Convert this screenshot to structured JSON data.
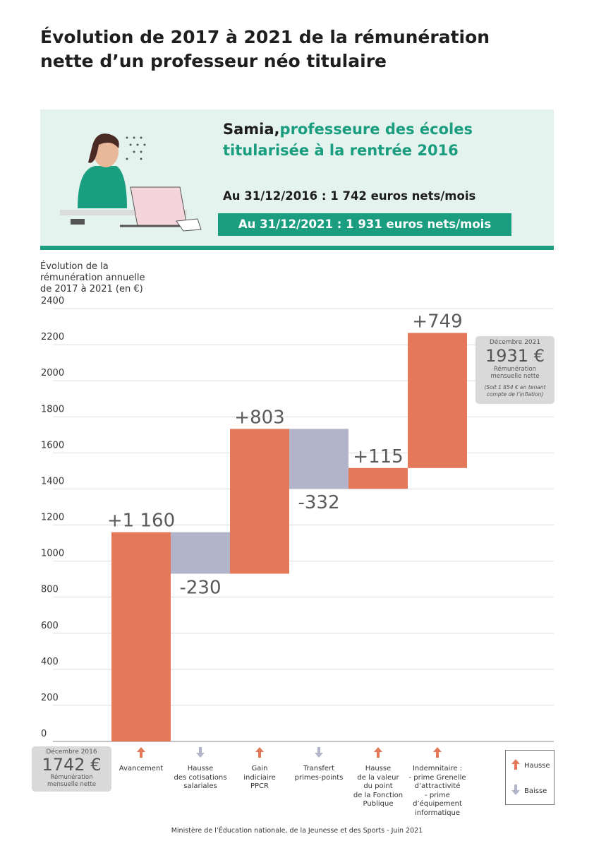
{
  "header": {
    "title": "Évolution de 2017 à 2021 de la rémunération\nnette d’un professeur néo titulaire"
  },
  "profile": {
    "name": "Samia,",
    "role": "professeure des écoles\ntitularisée à la rentrée 2016",
    "salary_2016": "Au 31/12/2016 : 1 742 euros nets/mois",
    "salary_2021": "Au 31/12/2021 : 1 931 euros nets/mois"
  },
  "chart_data": {
    "type": "waterfall",
    "y_axis_label": "Évolution de la\nrémunération annuelle\nde 2017 à 2021 (en €)",
    "categories": [
      "Avancement",
      "Hausse\ndes cotisations\nsalariales",
      "Gain\nindiciaire\nPPCR",
      "Transfert\nprimes-points",
      "Hausse\nde la valeur\ndu point\nde la Fonction\nPublique",
      "Indemnitaire :\n- prime Grenelle\nd’attractivité\n- prime\nd’équipement\ninformatique"
    ],
    "values": [
      1160,
      -230,
      803,
      -332,
      115,
      749
    ],
    "value_labels": [
      "+1 160",
      "-230",
      "+803",
      "-332",
      "+115",
      "+749"
    ],
    "legend": [
      {
        "name": "Hausse",
        "color": "#e3795a"
      },
      {
        "name": "Baisse",
        "color": "#b2b4c9"
      }
    ],
    "ylim": [
      0,
      2400
    ],
    "yticks": [
      0,
      200,
      400,
      600,
      800,
      1000,
      1200,
      1400,
      1600,
      1800,
      2000,
      2200,
      2400
    ],
    "grid": true,
    "start_box": {
      "date": "Décembre 2016",
      "amount": "1742 €",
      "caption": "Rémunération\nmensuelle nette"
    },
    "end_box": {
      "date": "Décembre 2021",
      "amount": "1931 €",
      "caption": "Rémunération\nmensuelle nette",
      "note": "(Soit 1 854 € en tenant\ncompte de l’inflation)"
    }
  },
  "footer": "Ministère de l’Éducation nationale, de la Jeunesse et des Sports - Juin 2021"
}
